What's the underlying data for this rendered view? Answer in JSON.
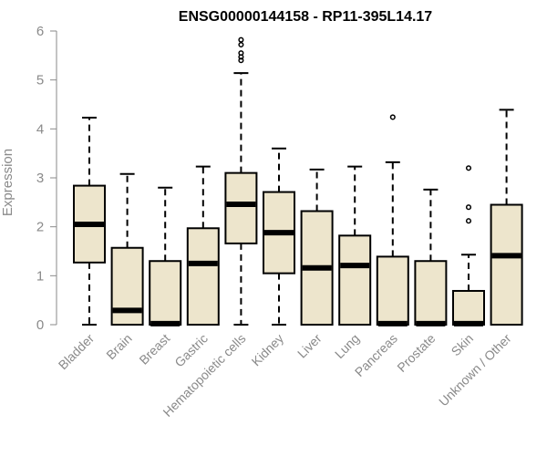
{
  "chart_data": {
    "type": "boxplot",
    "title": "ENSG00000144158 - RP11-395L14.17",
    "ylabel": "Expression",
    "xlabel": "",
    "ylim": [
      0,
      6
    ],
    "yticks": [
      0,
      1,
      2,
      3,
      4,
      5,
      6
    ],
    "box_fill": "#ede5cc",
    "box_stroke": "#000000",
    "axis_color": "#8a8a8a",
    "categories": [
      "Bladder",
      "Brain",
      "Breast",
      "Gastric",
      "Hematopoietic cells",
      "Kidney",
      "Liver",
      "Lung",
      "Pancreas",
      "Prostate",
      "Skin",
      "Unknown / Other"
    ],
    "boxes": [
      {
        "category": "Bladder",
        "whisker_low": 0.0,
        "q1": 1.27,
        "median": 2.05,
        "q3": 2.84,
        "whisker_high": 4.23,
        "outliers": []
      },
      {
        "category": "Brain",
        "whisker_low": 0.0,
        "q1": 0.0,
        "median": 0.29,
        "q3": 1.57,
        "whisker_high": 3.08,
        "outliers": []
      },
      {
        "category": "Breast",
        "whisker_low": 0.0,
        "q1": 0.0,
        "median": 0.02,
        "q3": 1.3,
        "whisker_high": 2.8,
        "outliers": []
      },
      {
        "category": "Gastric",
        "whisker_low": 0.0,
        "q1": 0.0,
        "median": 1.25,
        "q3": 1.97,
        "whisker_high": 3.23,
        "outliers": []
      },
      {
        "category": "Hematopoietic cells",
        "whisker_low": 0.0,
        "q1": 1.66,
        "median": 2.46,
        "q3": 3.1,
        "whisker_high": 5.14,
        "outliers": [
          5.4,
          5.47,
          5.55,
          5.72,
          5.82
        ]
      },
      {
        "category": "Kidney",
        "whisker_low": 0.0,
        "q1": 1.05,
        "median": 1.88,
        "q3": 2.71,
        "whisker_high": 3.6,
        "outliers": []
      },
      {
        "category": "Liver",
        "whisker_low": 0.0,
        "q1": 0.0,
        "median": 1.16,
        "q3": 2.32,
        "whisker_high": 3.17,
        "outliers": []
      },
      {
        "category": "Lung",
        "whisker_low": 0.0,
        "q1": 0.0,
        "median": 1.21,
        "q3": 1.82,
        "whisker_high": 3.23,
        "outliers": []
      },
      {
        "category": "Pancreas",
        "whisker_low": 0.0,
        "q1": 0.0,
        "median": 0.02,
        "q3": 1.39,
        "whisker_high": 3.32,
        "outliers": [
          4.24
        ]
      },
      {
        "category": "Prostate",
        "whisker_low": 0.0,
        "q1": 0.0,
        "median": 0.02,
        "q3": 1.3,
        "whisker_high": 2.76,
        "outliers": []
      },
      {
        "category": "Skin",
        "whisker_low": 0.0,
        "q1": 0.0,
        "median": 0.02,
        "q3": 0.69,
        "whisker_high": 1.43,
        "outliers": [
          2.12,
          2.4,
          3.2
        ]
      },
      {
        "category": "Unknown / Other",
        "whisker_low": 0.0,
        "q1": 0.0,
        "median": 1.41,
        "q3": 2.45,
        "whisker_high": 4.39,
        "outliers": []
      }
    ]
  }
}
